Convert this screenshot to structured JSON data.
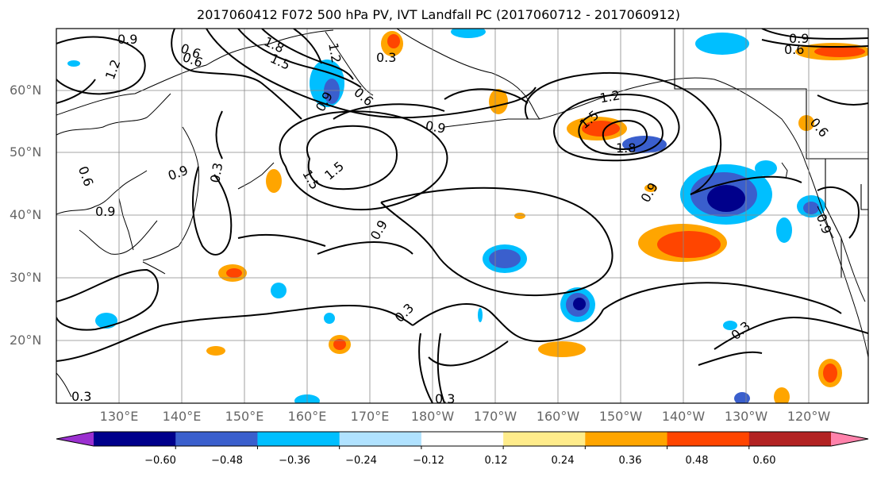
{
  "title": "2017060412 F072 500 hPa PV, IVT Landfall PC (2017060712 - 2017060912)",
  "lat_labels": [
    "60°N",
    "50°N",
    "40°N",
    "30°N",
    "20°N"
  ],
  "lon_labels": [
    "130°E",
    "140°E",
    "150°E",
    "160°E",
    "170°E",
    "180°W",
    "170°W",
    "160°W",
    "150°W",
    "140°W",
    "130°W",
    "120°W"
  ],
  "colorbar": {
    "tick_labels": [
      "−0.60",
      "−0.48",
      "−0.36",
      "−0.24",
      "−0.12",
      "0.12",
      "0.24",
      "0.36",
      "0.48",
      "0.60"
    ],
    "colors": [
      "#9b30d0",
      "#00008b",
      "#3a5fcd",
      "#00bfff",
      "#b0e2ff",
      "#ffffff",
      "#ffec8b",
      "#ffa500",
      "#ff4500",
      "#b22222",
      "#ff82ab"
    ]
  },
  "contour_labels": [
    "0.9",
    "1.2",
    "0.6",
    "1.8",
    "1.5",
    "1.2",
    "0.3",
    "0.6",
    "0.9",
    "0.6",
    "0.9",
    "0.3",
    "1.5",
    "1.5",
    "0.9",
    "0.6",
    "0.9",
    "0.9",
    "1.2",
    "1.5",
    "1.8",
    "0.9",
    "0.9",
    "0.6",
    "0.3",
    "0.3",
    "0.3",
    "0.3",
    "0.9",
    "0.6"
  ]
}
